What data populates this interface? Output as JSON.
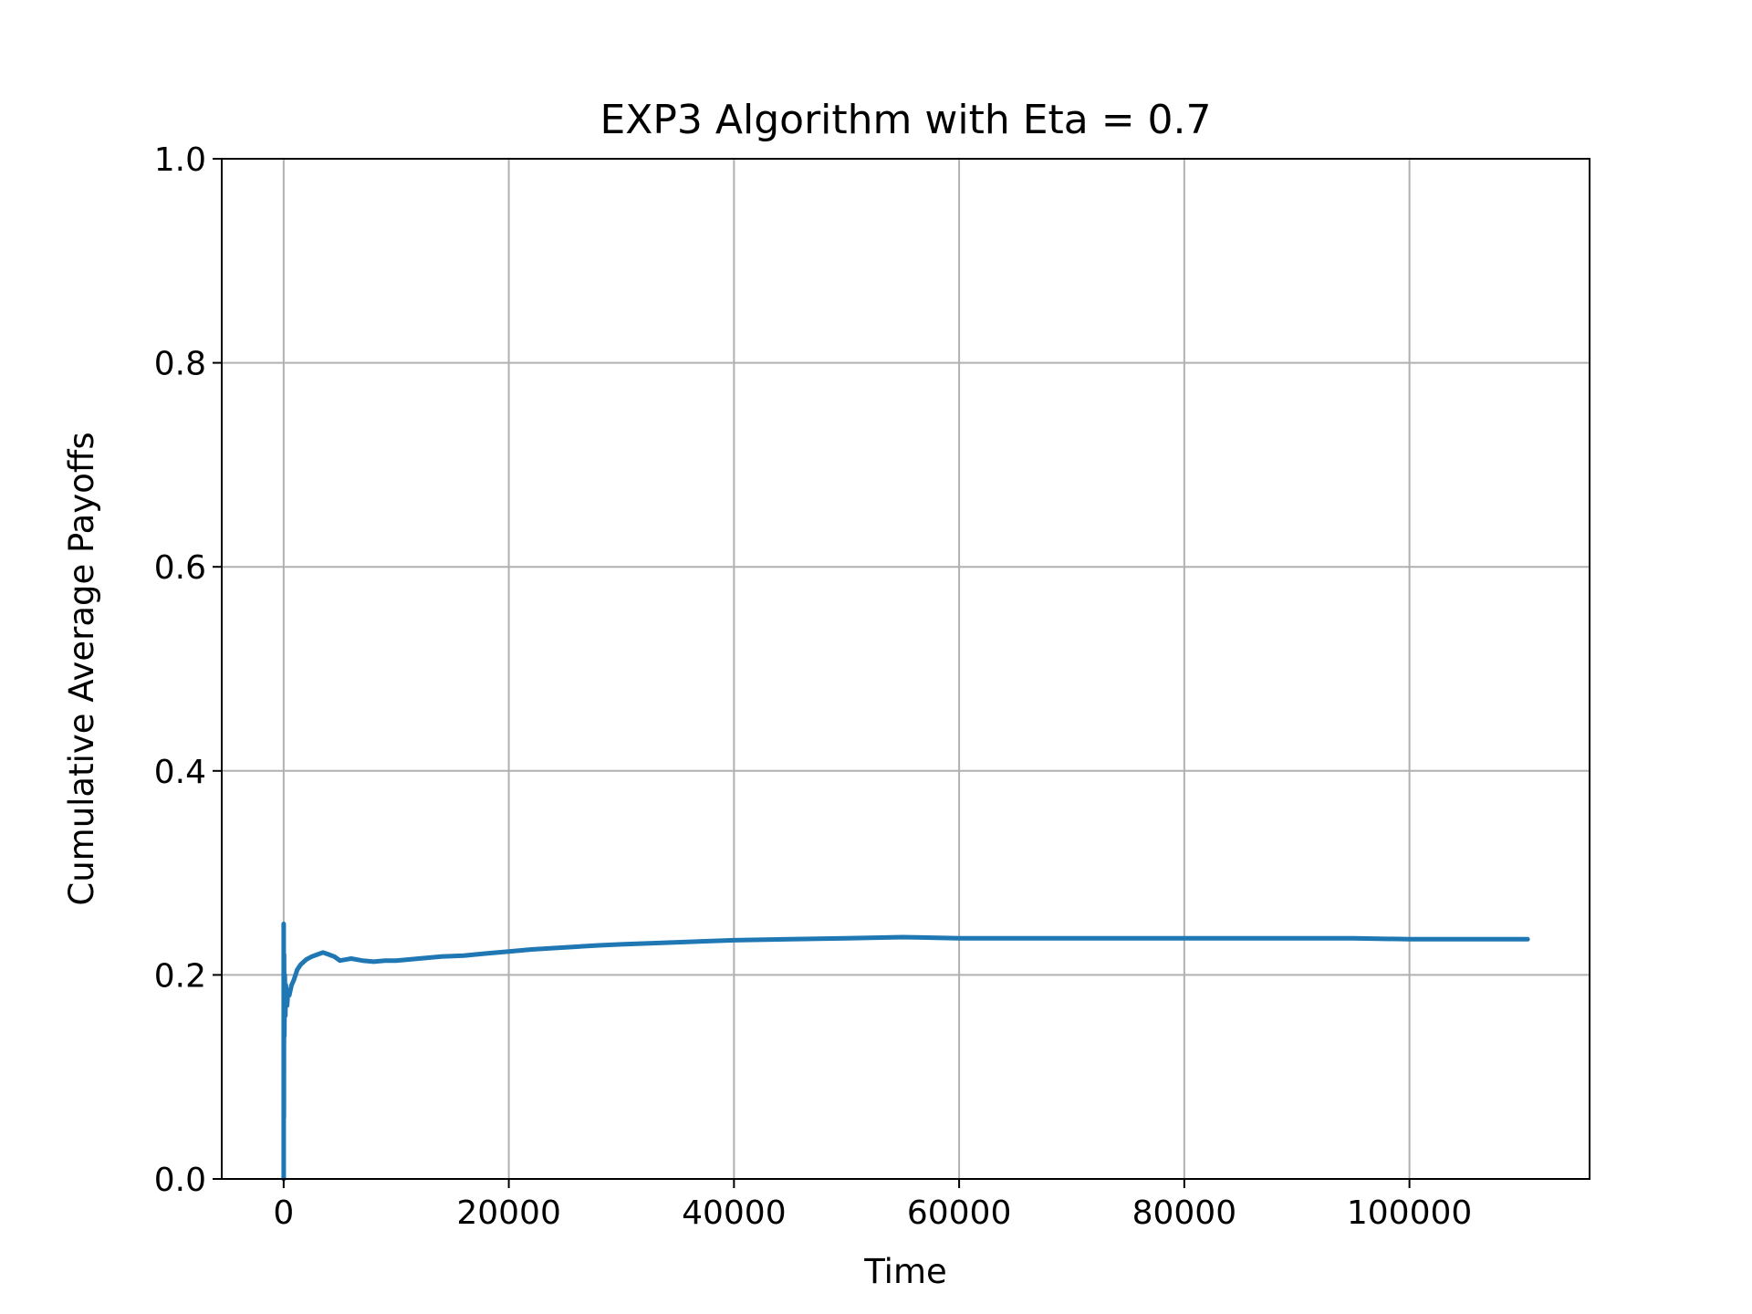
{
  "chart_data": {
    "type": "line",
    "title": "EXP3 Algorithm with Eta = 0.7",
    "xlabel": "Time",
    "ylabel": "Cumulative Average Payoffs",
    "xlim": [
      -5500,
      116000
    ],
    "ylim": [
      0.0,
      1.0
    ],
    "grid": true,
    "x_ticks": [
      0,
      20000,
      40000,
      60000,
      80000,
      100000
    ],
    "x_tick_labels": [
      "0",
      "20000",
      "40000",
      "60000",
      "80000",
      "100000"
    ],
    "y_ticks": [
      0.0,
      0.2,
      0.4,
      0.6,
      0.8,
      1.0
    ],
    "y_tick_labels": [
      "0.0",
      "0.2",
      "0.4",
      "0.6",
      "0.8",
      "1.0"
    ],
    "colors": {
      "line": "#1f77b4",
      "grid": "#b0b0b0",
      "axes": "#000000"
    },
    "series": [
      {
        "x": [
          0,
          0,
          20,
          40,
          60,
          100,
          150,
          200,
          300,
          400,
          500,
          700,
          900,
          1200,
          1500,
          2000,
          2500,
          3000,
          3500,
          4000,
          4500,
          5000,
          6000,
          7000,
          8000,
          9000,
          10000,
          11000,
          12000,
          14000,
          16000,
          18000,
          20000,
          22000,
          25000,
          28000,
          30000,
          35000,
          40000,
          45000,
          50000,
          55000,
          60000,
          65000,
          70000,
          75000,
          80000,
          85000,
          90000,
          95000,
          100000,
          105000,
          110500
        ],
        "y": [
          0.0,
          0.25,
          0.06,
          0.22,
          0.14,
          0.2,
          0.16,
          0.19,
          0.17,
          0.185,
          0.18,
          0.19,
          0.195,
          0.205,
          0.21,
          0.215,
          0.218,
          0.22,
          0.222,
          0.22,
          0.218,
          0.214,
          0.216,
          0.214,
          0.213,
          0.214,
          0.214,
          0.215,
          0.216,
          0.218,
          0.219,
          0.221,
          0.223,
          0.225,
          0.227,
          0.229,
          0.23,
          0.232,
          0.234,
          0.235,
          0.236,
          0.237,
          0.236,
          0.236,
          0.236,
          0.236,
          0.236,
          0.236,
          0.236,
          0.236,
          0.235,
          0.235,
          0.235
        ]
      }
    ]
  }
}
